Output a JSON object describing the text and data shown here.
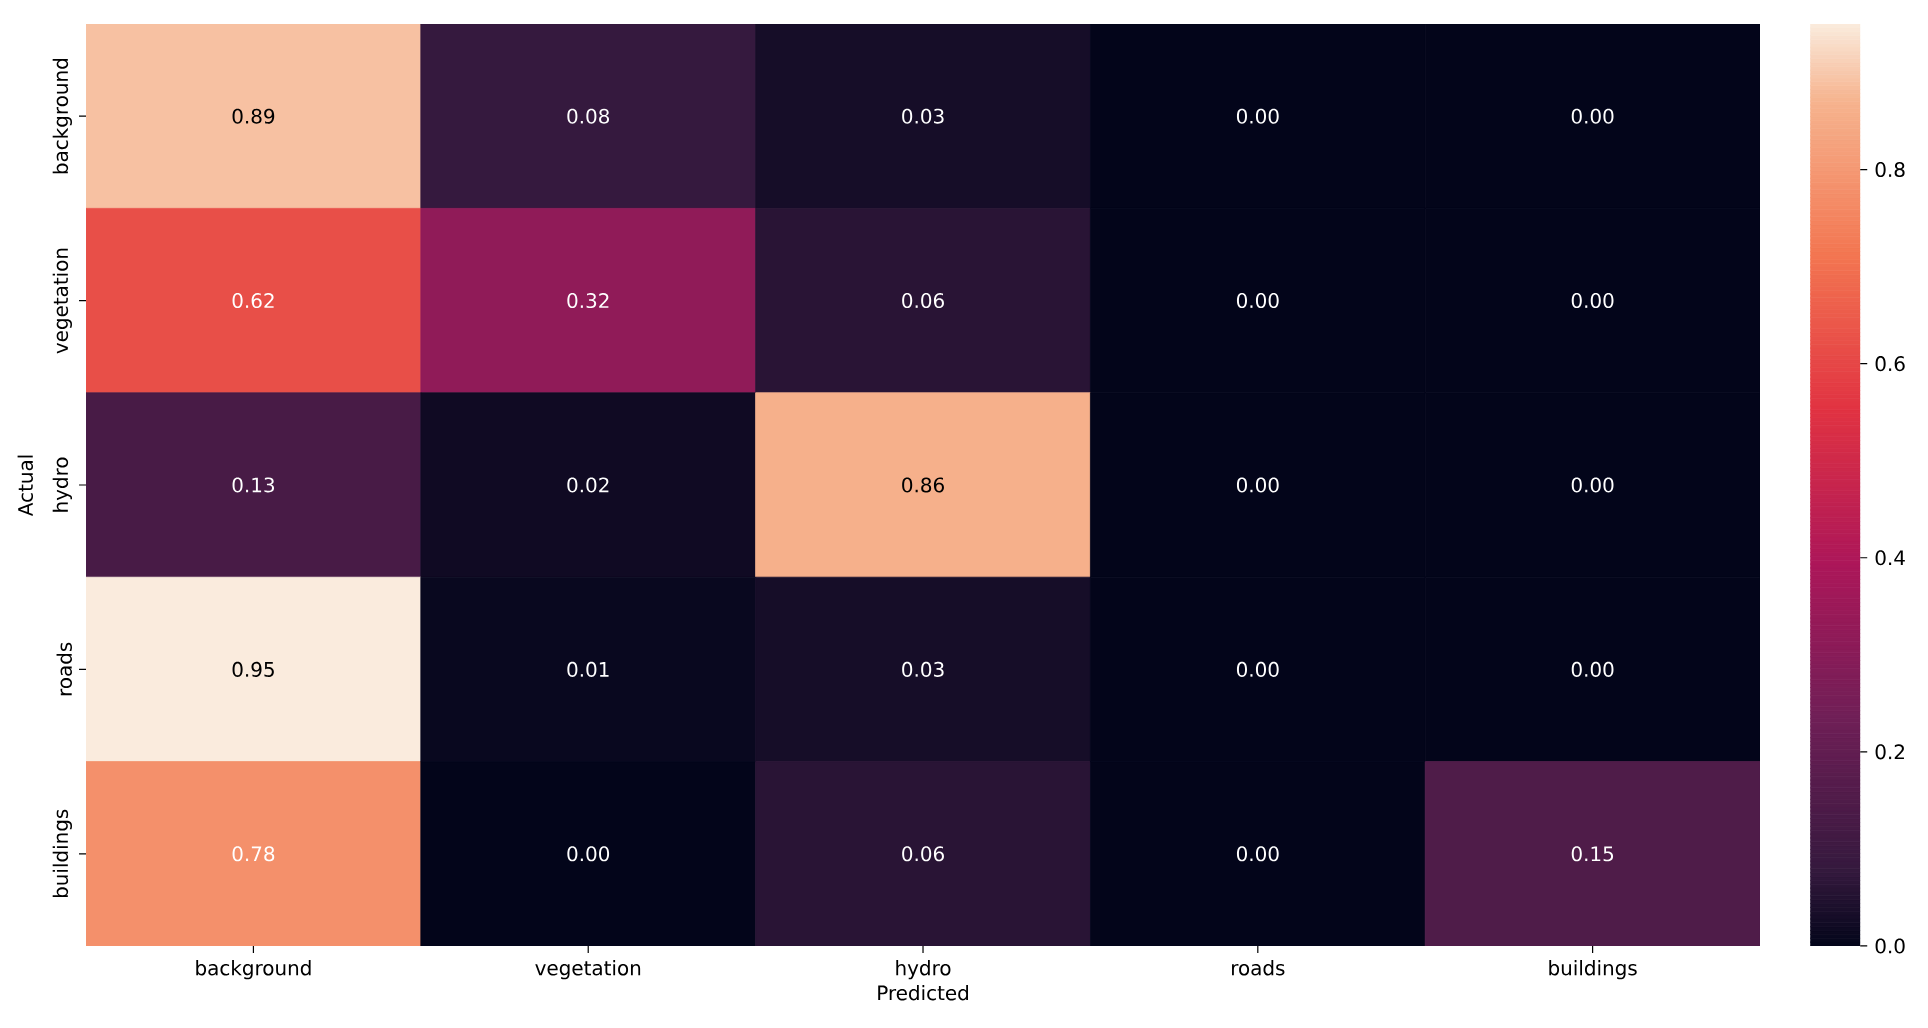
{
  "chart_data": {
    "type": "heatmap",
    "xlabel": "Predicted",
    "ylabel": "Actual",
    "categories": [
      "background",
      "vegetation",
      "hydro",
      "roads",
      "buildings"
    ],
    "y_categories": [
      "background",
      "vegetation",
      "hydro",
      "roads",
      "buildings"
    ],
    "cells": [
      [
        0.89,
        0.08,
        0.03,
        0.0,
        0.0
      ],
      [
        0.62,
        0.32,
        0.06,
        0.0,
        0.0
      ],
      [
        0.13,
        0.02,
        0.86,
        0.0,
        0.0
      ],
      [
        0.95,
        0.01,
        0.03,
        0.0,
        0.0
      ],
      [
        0.78,
        0.0,
        0.06,
        0.0,
        0.15
      ]
    ],
    "cell_labels": [
      [
        "0.89",
        "0.08",
        "0.03",
        "0.00",
        "0.00"
      ],
      [
        "0.62",
        "0.32",
        "0.06",
        "0.00",
        "0.00"
      ],
      [
        "0.13",
        "0.02",
        "0.86",
        "0.00",
        "0.00"
      ],
      [
        "0.95",
        "0.01",
        "0.03",
        "0.00",
        "0.00"
      ],
      [
        "0.78",
        "0.00",
        "0.06",
        "0.00",
        "0.15"
      ]
    ],
    "clim": [
      0,
      0.95
    ],
    "cticks": [
      {
        "value": 0,
        "label": "0.0"
      },
      0.2,
      0.4,
      0.6,
      0.8
    ]
  }
}
